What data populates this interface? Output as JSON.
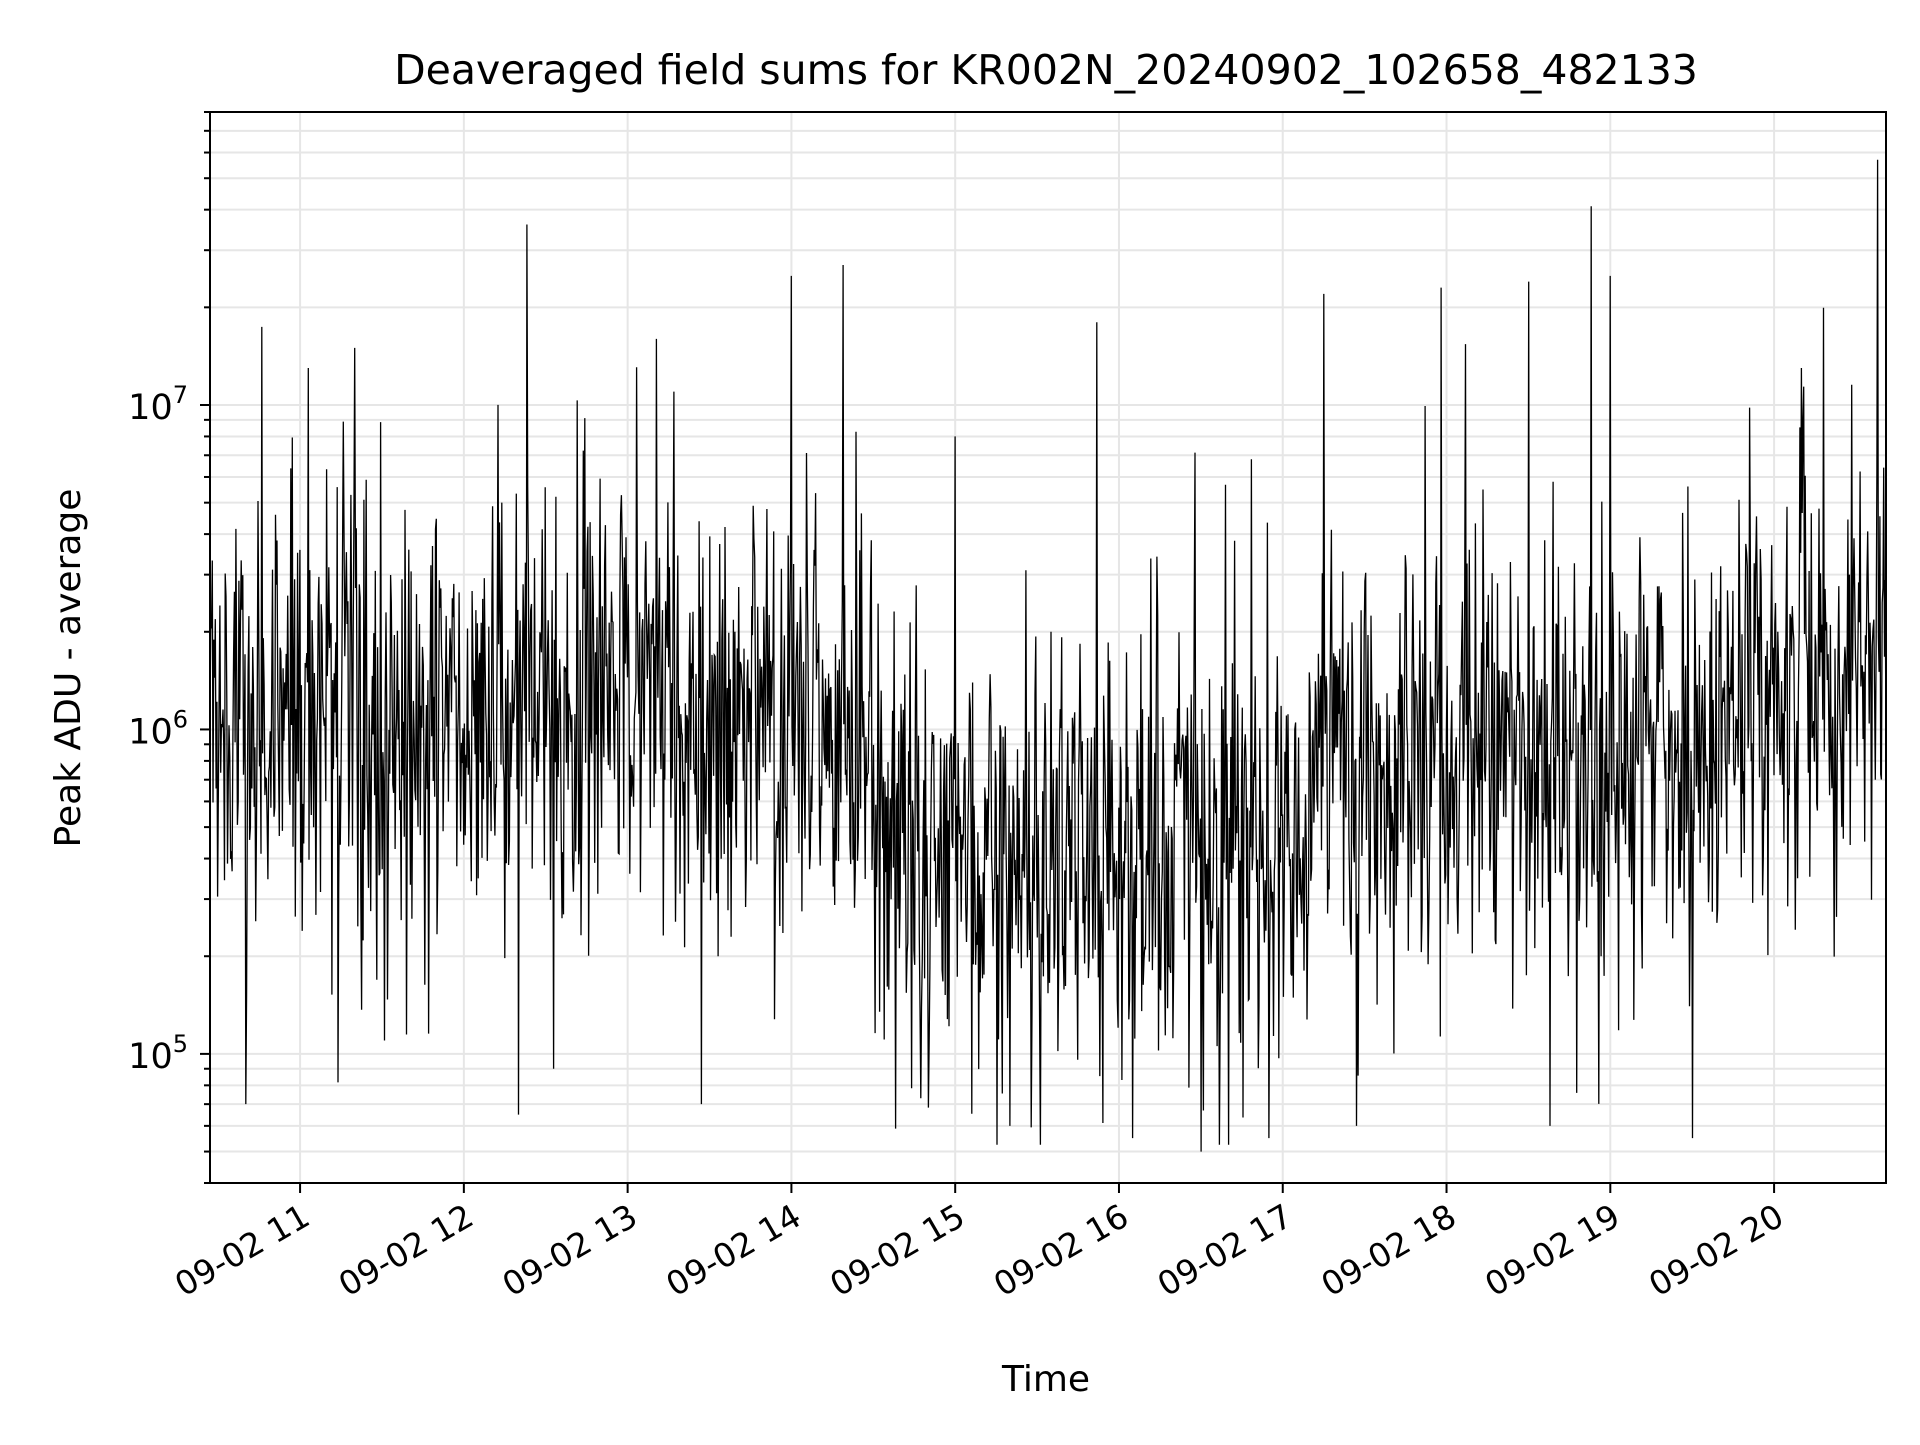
{
  "chart_data": {
    "type": "line",
    "title": "Deaveraged field sums for KR002N_20240902_102658_482133",
    "xlabel": "Time",
    "ylabel": "Peak ADU - average",
    "y_scale": "log",
    "ylim": [
      40000,
      80000000
    ],
    "xlim": [
      "09-02 10:27",
      "09-02 20:41"
    ],
    "x_ticks": [
      {
        "label": "09-02 11",
        "time": "09-02 11:00"
      },
      {
        "label": "09-02 12",
        "time": "09-02 12:00"
      },
      {
        "label": "09-02 13",
        "time": "09-02 13:00"
      },
      {
        "label": "09-02 14",
        "time": "09-02 14:00"
      },
      {
        "label": "09-02 15",
        "time": "09-02 15:00"
      },
      {
        "label": "09-02 16",
        "time": "09-02 16:00"
      },
      {
        "label": "09-02 17",
        "time": "09-02 17:00"
      },
      {
        "label": "09-02 18",
        "time": "09-02 18:00"
      },
      {
        "label": "09-02 19",
        "time": "09-02 19:00"
      },
      {
        "label": "09-02 20",
        "time": "09-02 20:00"
      }
    ],
    "y_ticks": [
      {
        "base": "10",
        "exp": "5",
        "value": 100000
      },
      {
        "base": "10",
        "exp": "6",
        "value": 1000000
      },
      {
        "base": "10",
        "exp": "7",
        "value": 10000000
      }
    ],
    "grid": true,
    "line_color": "#000000",
    "grid_color": "#e6e6e6",
    "series": [
      {
        "x": [
          "09-02 10:27",
          "09-02 10:40",
          "09-02 11:03",
          "09-02 11:20",
          "09-02 11:31",
          "09-02 12:20",
          "09-02 12:23",
          "09-02 12:33",
          "09-02 13:17",
          "09-02 13:27",
          "09-02 14:00",
          "09-02 14:19",
          "09-02 14:40",
          "09-02 15:00",
          "09-02 15:20",
          "09-02 15:35",
          "09-02 15:52",
          "09-02 16:05",
          "09-02 16:30",
          "09-02 16:55",
          "09-02 17:15",
          "09-02 17:27",
          "09-02 17:58",
          "09-02 18:30",
          "09-02 18:38",
          "09-02 18:53",
          "09-02 19:00",
          "09-02 19:30",
          "09-02 19:48",
          "09-02 20:10",
          "09-02 20:37",
          "09-02 20:38"
        ],
        "y": [
          1100000,
          70000,
          13000000,
          15000000,
          110000,
          65000,
          36000000,
          90000,
          11000000,
          70000,
          25000000,
          27000000,
          1200000,
          8000000,
          60000,
          2000000,
          18000000,
          55000,
          50000,
          55000,
          22000000,
          60000,
          23000000,
          24000000,
          60000,
          41000000,
          25000000,
          55000,
          350000,
          13000000,
          700000,
          57000000
        ]
      }
    ]
  }
}
